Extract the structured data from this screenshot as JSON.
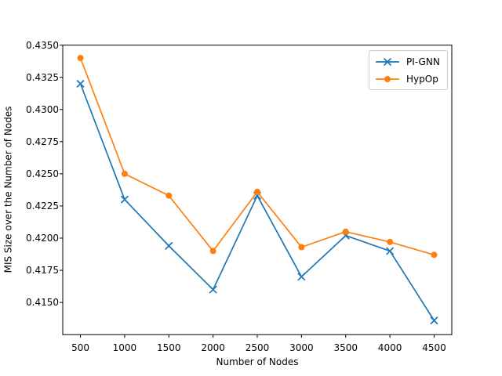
{
  "chart_data": {
    "type": "line",
    "title": "",
    "xlabel": "Number of Nodes",
    "ylabel": "MIS Size over the Number of Nodes",
    "x": [
      500,
      1000,
      1500,
      2000,
      2500,
      3000,
      3500,
      4000,
      4500
    ],
    "x_ticks": [
      500,
      1000,
      1500,
      2000,
      2500,
      3000,
      3500,
      4000,
      4500
    ],
    "x_tick_labels": [
      "500",
      "1000",
      "1500",
      "2000",
      "2500",
      "3000",
      "3500",
      "4000",
      "4500"
    ],
    "y_ticks": [
      0.415,
      0.4175,
      0.42,
      0.4225,
      0.425,
      0.4275,
      0.43,
      0.4325,
      0.435
    ],
    "y_tick_labels": [
      "0.4150",
      "0.4175",
      "0.4200",
      "0.4225",
      "0.4250",
      "0.4275",
      "0.4300",
      "0.4325",
      "0.4350"
    ],
    "xlim": [
      300,
      4700
    ],
    "ylim": [
      0.4125,
      0.435
    ],
    "grid": false,
    "legend_position": "upper right",
    "axis_color": "#000000",
    "legend_border_color": "#cccccc",
    "series": [
      {
        "name": "PI-GNN",
        "color": "#1f77b4",
        "marker": "x",
        "values": [
          0.432,
          0.423,
          0.4194,
          0.416,
          0.4233,
          0.417,
          0.4202,
          0.419,
          0.4136
        ]
      },
      {
        "name": "HypOp",
        "color": "#ff7f0e",
        "marker": "circle",
        "values": [
          0.434,
          0.425,
          0.4233,
          0.419,
          0.4236,
          0.4193,
          0.4205,
          0.4197,
          0.4187
        ]
      }
    ]
  }
}
